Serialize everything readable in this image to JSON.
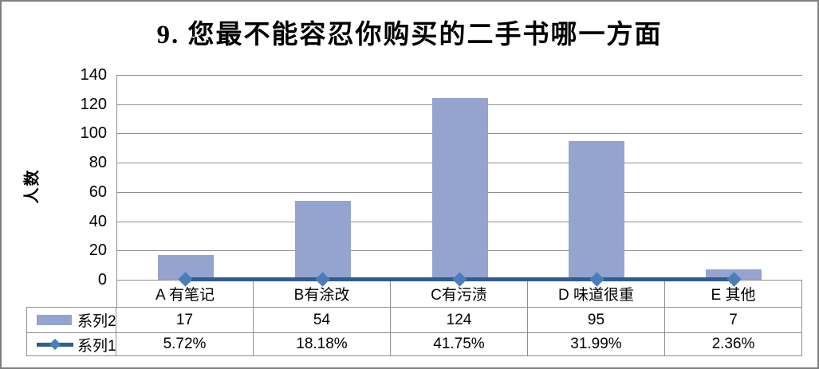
{
  "frame": {
    "background": "#FFFFFF",
    "border_color": "#7F7F7F"
  },
  "chart_data": {
    "type": "bar",
    "title": "9. 您最不能容忍你购买的二手书哪一方面",
    "ylabel": "人数",
    "xlabel": "",
    "ylim": [
      0,
      140
    ],
    "yticks": [
      0,
      20,
      40,
      60,
      80,
      100,
      120,
      140
    ],
    "grid": "horizontal",
    "legend_position": "data-table-left-column",
    "categories": [
      "A 有笔记",
      "B有涂改",
      "C有污渍",
      "D 味道很重",
      "E 其他"
    ],
    "series": [
      {
        "name": "系列2",
        "type": "bar",
        "values": [
          17,
          54,
          124,
          95,
          7
        ],
        "display_values": [
          "17",
          "54",
          "124",
          "95",
          "7"
        ],
        "color": "#95A4CE"
      },
      {
        "name": "系列1",
        "type": "line",
        "values_percent": [
          5.72,
          18.18,
          41.75,
          31.99,
          2.36
        ],
        "display_values": [
          "5.72%",
          "18.18%",
          "41.75%",
          "31.99%",
          "2.36%"
        ],
        "color": "#2F5C8D",
        "marker": "diamond",
        "marker_color": "#4A7EBB"
      }
    ],
    "colors": {
      "gridline": "#8F8F8F",
      "axis": "#8F8F8F",
      "table_border": "#8F8F8F",
      "text": "#000000"
    }
  }
}
